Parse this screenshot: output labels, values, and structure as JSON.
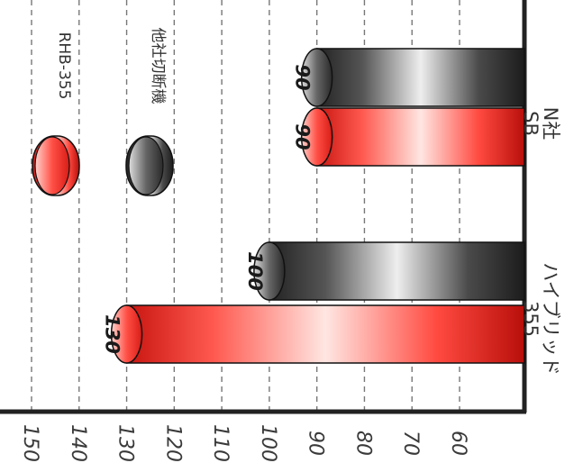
{
  "chart_data": {
    "type": "bar",
    "orientation": "rotated-90-cw",
    "title": "",
    "xlabel": "",
    "ylabel": "",
    "categories": [
      "ハイブリッド355",
      "N社SB"
    ],
    "category_lines": [
      [
        "ハイブリッド",
        "355"
      ],
      [
        "N社",
        "SB"
      ]
    ],
    "series": [
      {
        "name": "RHB-355",
        "values": [
          130,
          90
        ],
        "color": "#ee2a24"
      },
      {
        "name": "他社切断機",
        "values": [
          100,
          90
        ],
        "color": "#404040"
      }
    ],
    "value_labels": [
      [
        "130",
        "90"
      ],
      [
        "100",
        "90"
      ]
    ],
    "ylim": [
      60,
      150
    ],
    "ticks": [
      150,
      140,
      130,
      120,
      110,
      100,
      90,
      80,
      70,
      60
    ],
    "tick_labels": [
      "150",
      "140",
      "130",
      "120",
      "110",
      "100",
      "90",
      "80",
      "70",
      "60"
    ],
    "grid": true,
    "legend_position": "top"
  }
}
